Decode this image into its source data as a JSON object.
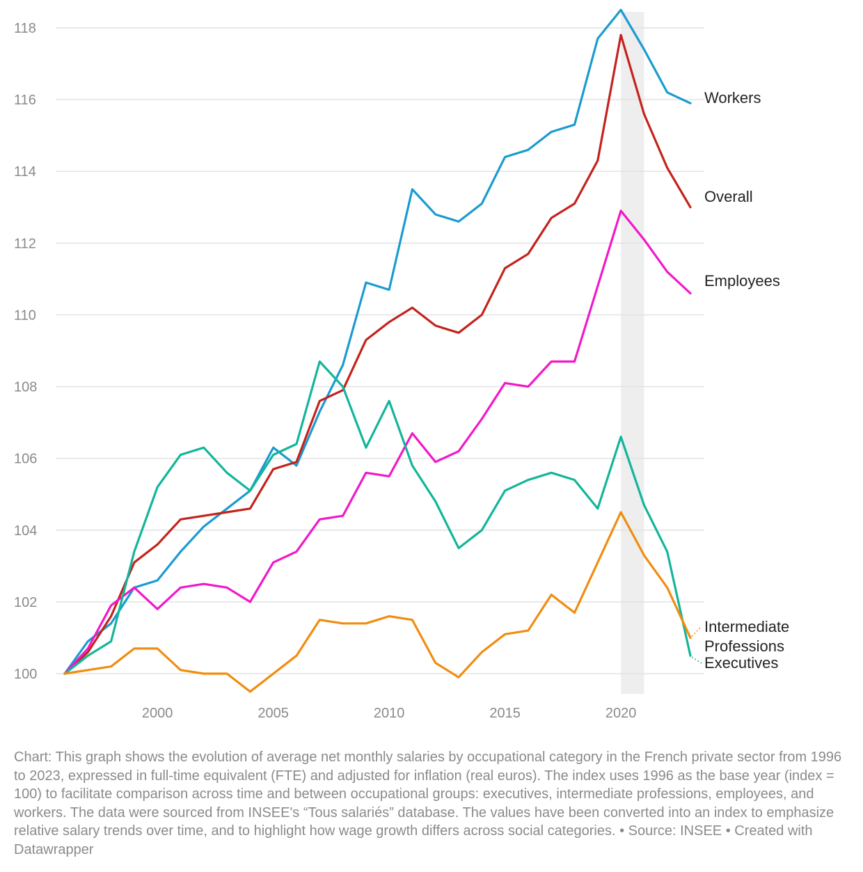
{
  "chart_data": {
    "type": "line",
    "title": "",
    "xlabel": "",
    "ylabel": "",
    "x_ticks": [
      2000,
      2005,
      2010,
      2015,
      2020
    ],
    "y_ticks": [
      100,
      102,
      104,
      106,
      108,
      110,
      112,
      114,
      116,
      118
    ],
    "xlim": [
      1996,
      2023
    ],
    "ylim": [
      99.5,
      118.5
    ],
    "highlight_range": [
      2020,
      2021
    ],
    "grid": true,
    "legend": "direct-labels-right",
    "x": [
      1996,
      1997,
      1998,
      1999,
      2000,
      2001,
      2002,
      2003,
      2004,
      2005,
      2006,
      2007,
      2008,
      2009,
      2010,
      2011,
      2012,
      2013,
      2014,
      2015,
      2016,
      2017,
      2018,
      2019,
      2020,
      2021,
      2022,
      2023
    ],
    "series": [
      {
        "name": "Workers",
        "color": "#1a9bd1",
        "values": [
          100,
          100.9,
          101.4,
          102.4,
          102.6,
          103.4,
          104.1,
          104.6,
          105.1,
          106.3,
          105.8,
          107.3,
          108.6,
          110.9,
          110.7,
          113.5,
          112.8,
          112.6,
          113.1,
          114.4,
          114.6,
          115.1,
          115.3,
          117.7,
          118.5,
          117.4,
          116.2,
          115.9
        ]
      },
      {
        "name": "Overall",
        "color": "#c4221c",
        "values": [
          100,
          100.6,
          101.6,
          103.1,
          103.6,
          104.3,
          104.4,
          104.5,
          104.6,
          105.7,
          105.9,
          107.6,
          107.9,
          109.3,
          109.8,
          110.2,
          109.7,
          109.5,
          110.0,
          111.3,
          111.7,
          112.7,
          113.1,
          114.3,
          117.8,
          115.6,
          114.1,
          113.0
        ]
      },
      {
        "name": "Employees",
        "color": "#f118c9",
        "values": [
          100,
          100.7,
          101.9,
          102.4,
          101.8,
          102.4,
          102.5,
          102.4,
          102.0,
          103.1,
          103.4,
          104.3,
          104.4,
          105.6,
          105.5,
          106.7,
          105.9,
          106.2,
          107.1,
          108.1,
          108.0,
          108.7,
          108.7,
          110.8,
          112.9,
          112.1,
          111.2,
          110.6
        ]
      },
      {
        "name": "Executives",
        "color": "#13b59b",
        "values": [
          100,
          100.5,
          100.9,
          103.4,
          105.2,
          106.1,
          106.3,
          105.6,
          105.1,
          106.1,
          106.4,
          108.7,
          108.0,
          106.3,
          107.6,
          105.8,
          104.8,
          103.5,
          104.0,
          105.1,
          105.4,
          105.6,
          105.4,
          104.6,
          106.6,
          104.7,
          103.4,
          100.5
        ]
      },
      {
        "name": "Intermediate Professions",
        "color": "#f08d0f",
        "values": [
          100,
          100.1,
          100.2,
          100.7,
          100.7,
          100.1,
          100.0,
          100.0,
          99.5,
          100.0,
          100.5,
          101.5,
          101.4,
          101.4,
          101.6,
          101.5,
          100.3,
          99.9,
          100.6,
          101.1,
          101.2,
          102.2,
          101.7,
          103.1,
          104.5,
          103.3,
          102.4,
          101.0
        ]
      }
    ],
    "labels": {
      "workers": "Workers",
      "overall": "Overall",
      "employees": "Employees",
      "intermediate_line1": "Intermediate",
      "intermediate_line2": "Professions",
      "executives": "Executives"
    }
  },
  "caption": {
    "text": "Chart: This graph shows the evolution of average net monthly salaries by occupational category in the French private sector from 1996 to 2023, expressed in full-time equivalent (FTE) and adjusted for inflation (real euros). The index uses 1996 as the base year (index = 100) to facilitate comparison across time and between occupational groups: executives, intermediate professions, employees, and workers. The data were sourced from INSEE's “Tous salariés” database. The values have been converted into an index to emphasize relative salary trends over time, and to highlight how wage growth differs across social categories.",
    "source": "• Source: INSEE",
    "credit": "• Created with Datawrapper"
  },
  "colors": {
    "grid": "#e2e2e2",
    "axis_text": "#8a8a8a",
    "label_text": "#222222",
    "highlight": "#eeeeee"
  }
}
